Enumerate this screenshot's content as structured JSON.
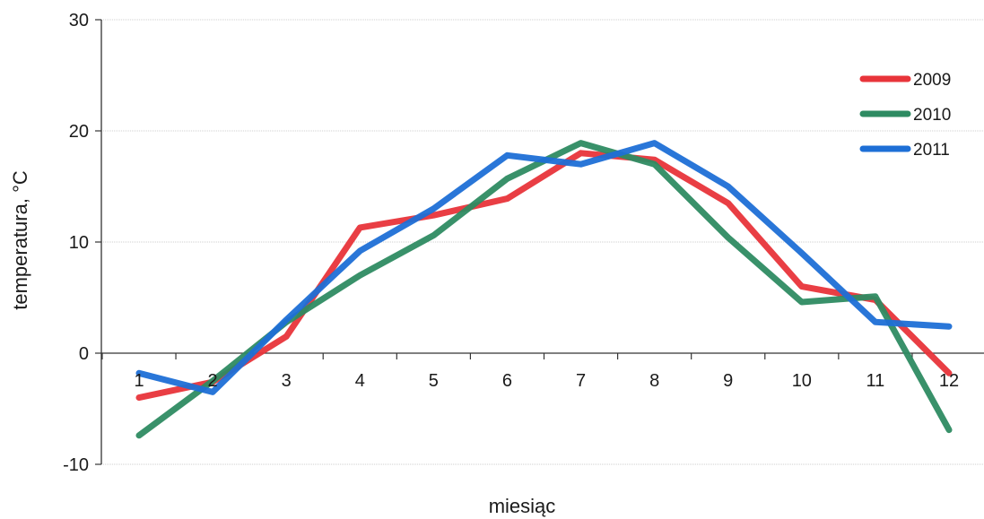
{
  "chart_data": {
    "type": "line",
    "title": "",
    "xlabel": "miesiąc",
    "ylabel": "temperatura, °C",
    "categories": [
      "1",
      "2",
      "3",
      "4",
      "5",
      "6",
      "7",
      "8",
      "9",
      "10",
      "11",
      "12"
    ],
    "ylim": [
      -10,
      30
    ],
    "yticks": [
      "-10",
      "0",
      "10",
      "20",
      "30"
    ],
    "grid": true,
    "legend_position": "top-right",
    "series": [
      {
        "name": "2009",
        "color": "#e8343a",
        "values": [
          -4.0,
          -2.6,
          1.5,
          11.3,
          12.4,
          13.9,
          18.0,
          17.4,
          13.5,
          6.0,
          4.8,
          -1.8
        ]
      },
      {
        "name": "2010",
        "color": "#2e8b62",
        "values": [
          -7.4,
          -2.5,
          2.8,
          7.0,
          10.6,
          15.7,
          18.9,
          17.0,
          10.4,
          4.6,
          5.1,
          -6.9
        ]
      },
      {
        "name": "2011",
        "color": "#1d6fd6",
        "values": [
          -1.8,
          -3.5,
          3.0,
          9.2,
          13.0,
          17.8,
          17.0,
          18.9,
          15.0,
          9.0,
          2.8,
          2.4
        ]
      }
    ]
  }
}
